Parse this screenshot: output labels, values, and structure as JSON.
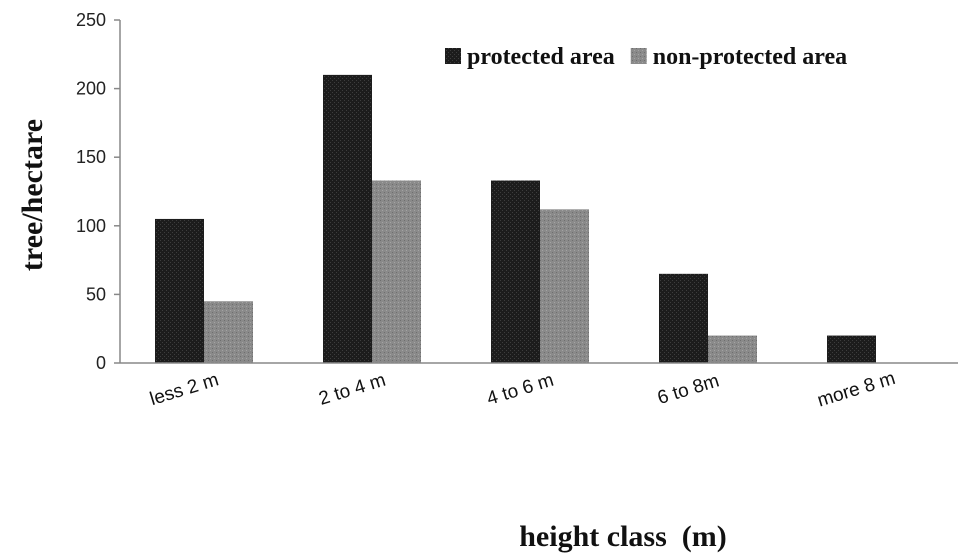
{
  "chart_data": {
    "type": "bar",
    "categories": [
      "less 2 m",
      "2 to 4 m",
      "4 to 6 m",
      "6 to 8m",
      "more 8 m"
    ],
    "series": [
      {
        "name": "protected area",
        "values": [
          105,
          210,
          133,
          65,
          20
        ],
        "color": "#1c1c1c"
      },
      {
        "name": "non-protected area",
        "values": [
          45,
          133,
          112,
          20,
          null
        ],
        "color": "#8a8a8a"
      }
    ],
    "xlabel": "height class  (m)",
    "ylabel": "tree/hectare",
    "ylim": [
      0,
      250
    ],
    "yticks": [
      0,
      50,
      100,
      150,
      200,
      250
    ],
    "grid": false,
    "legend_position": "top-right"
  }
}
